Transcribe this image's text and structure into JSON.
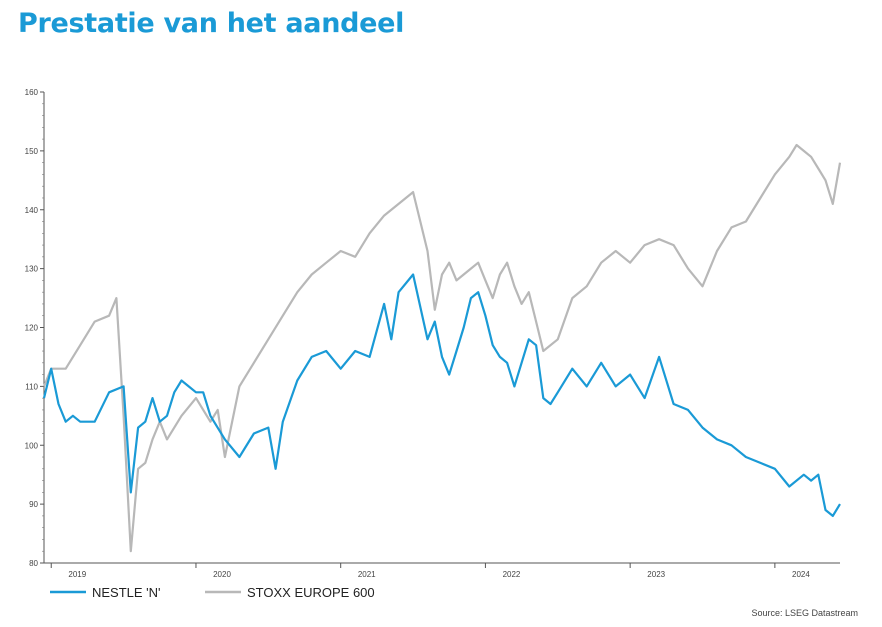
{
  "title": "Prestatie van het aandeel",
  "source": "Source: LSEG Datastream",
  "colors": {
    "title": "#1a9ad6",
    "nestle": "#1a9ad6",
    "stoxx": "#b8b8b8"
  },
  "chart_data": {
    "type": "line",
    "title": "",
    "xlabel": "",
    "ylabel": "",
    "ylim": [
      80,
      160
    ],
    "xlim": [
      2018.95,
      2024.45
    ],
    "yticks": [
      "80",
      "90",
      "100",
      "110",
      "120",
      "130",
      "140",
      "150",
      "160"
    ],
    "xticks": [
      "2019",
      "2020",
      "2021",
      "2022",
      "2023",
      "2024"
    ],
    "legend": "bottom-left",
    "grid": false,
    "series": [
      {
        "name": "NESTLE 'N'",
        "x": [
          2018.95,
          2019.0,
          2019.05,
          2019.1,
          2019.15,
          2019.2,
          2019.3,
          2019.4,
          2019.5,
          2019.55,
          2019.6,
          2019.65,
          2019.7,
          2019.75,
          2019.8,
          2019.85,
          2019.9,
          2019.95,
          2020.0,
          2020.05,
          2020.1,
          2020.2,
          2020.3,
          2020.4,
          2020.5,
          2020.55,
          2020.6,
          2020.7,
          2020.8,
          2020.9,
          2021.0,
          2021.1,
          2021.2,
          2021.3,
          2021.35,
          2021.4,
          2021.5,
          2021.6,
          2021.65,
          2021.7,
          2021.75,
          2021.8,
          2021.85,
          2021.9,
          2021.95,
          2022.0,
          2022.05,
          2022.1,
          2022.15,
          2022.2,
          2022.25,
          2022.3,
          2022.35,
          2022.4,
          2022.45,
          2022.5,
          2022.6,
          2022.7,
          2022.8,
          2022.9,
          2023.0,
          2023.1,
          2023.2,
          2023.3,
          2023.4,
          2023.5,
          2023.6,
          2023.7,
          2023.8,
          2023.9,
          2024.0,
          2024.1,
          2024.2,
          2024.25,
          2024.3,
          2024.35,
          2024.4,
          2024.45
        ],
        "values": [
          108,
          113,
          107,
          104,
          105,
          104,
          104,
          109,
          110,
          92,
          103,
          104,
          108,
          104,
          105,
          109,
          111,
          110,
          109,
          109,
          105,
          101,
          98,
          102,
          103,
          96,
          104,
          111,
          115,
          116,
          113,
          116,
          115,
          124,
          118,
          126,
          129,
          118,
          121,
          115,
          112,
          116,
          120,
          125,
          126,
          122,
          117,
          115,
          114,
          110,
          114,
          118,
          117,
          108,
          107,
          109,
          113,
          110,
          114,
          110,
          112,
          108,
          115,
          107,
          106,
          103,
          101,
          100,
          98,
          97,
          96,
          93,
          95,
          94,
          95,
          89,
          88,
          90
        ]
      },
      {
        "name": "STOXX EUROPE 600",
        "x": [
          2018.95,
          2019.0,
          2019.1,
          2019.2,
          2019.3,
          2019.4,
          2019.45,
          2019.5,
          2019.55,
          2019.6,
          2019.65,
          2019.7,
          2019.75,
          2019.8,
          2019.9,
          2020.0,
          2020.1,
          2020.15,
          2020.2,
          2020.3,
          2020.4,
          2020.5,
          2020.6,
          2020.7,
          2020.8,
          2020.9,
          2021.0,
          2021.1,
          2021.2,
          2021.3,
          2021.4,
          2021.5,
          2021.55,
          2021.6,
          2021.65,
          2021.7,
          2021.75,
          2021.8,
          2021.85,
          2021.9,
          2021.95,
          2022.0,
          2022.05,
          2022.1,
          2022.15,
          2022.2,
          2022.25,
          2022.3,
          2022.35,
          2022.4,
          2022.5,
          2022.6,
          2022.7,
          2022.8,
          2022.9,
          2023.0,
          2023.1,
          2023.2,
          2023.3,
          2023.35,
          2023.4,
          2023.5,
          2023.6,
          2023.7,
          2023.8,
          2023.9,
          2024.0,
          2024.1,
          2024.15,
          2024.2,
          2024.25,
          2024.3,
          2024.35,
          2024.4,
          2024.45
        ],
        "values": [
          110,
          113,
          113,
          117,
          121,
          122,
          125,
          105,
          82,
          96,
          97,
          101,
          104,
          101,
          105,
          108,
          104,
          106,
          98,
          110,
          114,
          118,
          122,
          126,
          129,
          131,
          133,
          132,
          136,
          139,
          141,
          143,
          138,
          133,
          123,
          129,
          131,
          128,
          129,
          130,
          131,
          128,
          125,
          129,
          131,
          127,
          124,
          126,
          121,
          116,
          118,
          125,
          127,
          131,
          133,
          131,
          134,
          135,
          134,
          132,
          130,
          127,
          133,
          137,
          138,
          142,
          146,
          149,
          151,
          150,
          149,
          147,
          145,
          141,
          148
        ]
      }
    ]
  }
}
